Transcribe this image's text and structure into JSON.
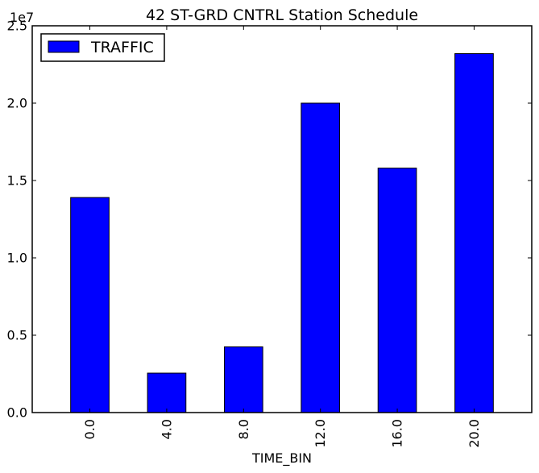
{
  "chart_data": {
    "type": "bar",
    "title": "42 ST-GRD CNTRL Station Schedule",
    "xlabel": "TIME_BIN",
    "ylabel": "",
    "categories": [
      "0.0",
      "4.0",
      "8.0",
      "12.0",
      "16.0",
      "20.0"
    ],
    "series": [
      {
        "name": "TRAFFIC",
        "values": [
          13900000,
          2550000,
          4250000,
          20000000,
          15800000,
          23200000
        ],
        "color": "#0000ff"
      }
    ],
    "ylim": [
      0,
      25000000
    ],
    "yticks": [
      0,
      5000000,
      10000000,
      15000000,
      20000000,
      25000000
    ],
    "ytick_labels": [
      "0.0",
      "0.5",
      "1.0",
      "1.5",
      "2.0",
      "2.5"
    ],
    "y_offset_label": "1e7",
    "legend": {
      "position": "top-left",
      "entries": [
        "TRAFFIC"
      ]
    },
    "grid": false
  }
}
